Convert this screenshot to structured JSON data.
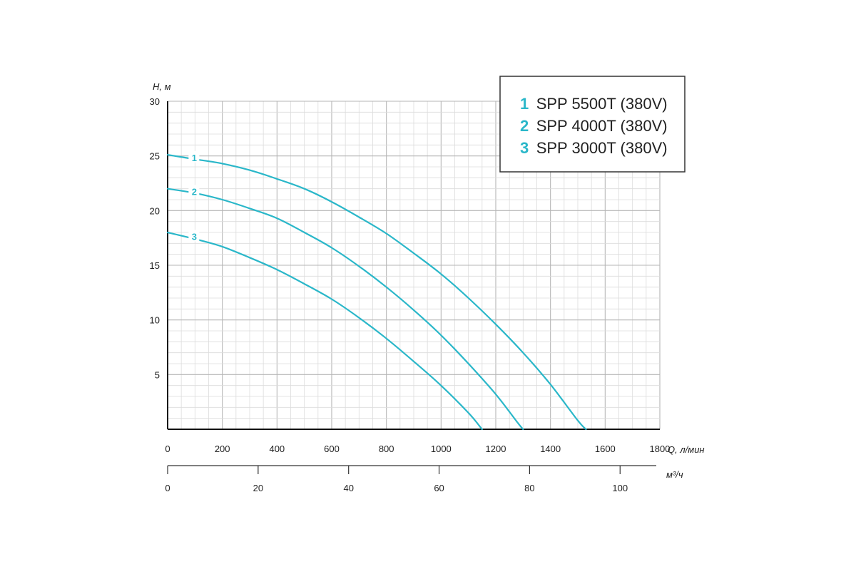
{
  "chart_data": {
    "type": "line",
    "title": "",
    "ylabel": "H, м",
    "xlabel": "Q, л/мин",
    "x2label": "м³/ч",
    "xlim": [
      0,
      1800
    ],
    "ylim": [
      0,
      30
    ],
    "x2lim": [
      0,
      108
    ],
    "xticks": [
      "0",
      "200",
      "400",
      "600",
      "800",
      "1000",
      "1200",
      "1400",
      "1600",
      "1800"
    ],
    "yticks": [
      "5",
      "10",
      "15",
      "20",
      "25",
      "30"
    ],
    "x2ticks": [
      "0",
      "20",
      "40",
      "60",
      "80",
      "100"
    ],
    "grid": true,
    "legend_position": "top-right",
    "series": [
      {
        "num": "1",
        "name": "SPP 5500T (380V)",
        "color": "#2ab7c9",
        "points": [
          [
            0,
            25.1
          ],
          [
            100,
            24.7
          ],
          [
            200,
            24.3
          ],
          [
            300,
            23.7
          ],
          [
            400,
            22.9
          ],
          [
            500,
            22.0
          ],
          [
            600,
            20.8
          ],
          [
            700,
            19.4
          ],
          [
            800,
            17.9
          ],
          [
            900,
            16.1
          ],
          [
            1000,
            14.2
          ],
          [
            1100,
            12.0
          ],
          [
            1200,
            9.6
          ],
          [
            1300,
            7.0
          ],
          [
            1400,
            4.1
          ],
          [
            1500,
            0.8
          ],
          [
            1530,
            0
          ]
        ]
      },
      {
        "num": "2",
        "name": "SPP 4000T (380V)",
        "color": "#2ab7c9",
        "points": [
          [
            0,
            22.0
          ],
          [
            100,
            21.6
          ],
          [
            200,
            21.0
          ],
          [
            300,
            20.2
          ],
          [
            400,
            19.3
          ],
          [
            500,
            18.0
          ],
          [
            600,
            16.6
          ],
          [
            700,
            14.9
          ],
          [
            800,
            13.0
          ],
          [
            900,
            10.9
          ],
          [
            1000,
            8.6
          ],
          [
            1100,
            6.0
          ],
          [
            1200,
            3.2
          ],
          [
            1280,
            0.6
          ],
          [
            1300,
            0
          ]
        ]
      },
      {
        "num": "3",
        "name": "SPP 3000T (380V)",
        "color": "#2ab7c9",
        "points": [
          [
            0,
            18.0
          ],
          [
            100,
            17.4
          ],
          [
            200,
            16.7
          ],
          [
            300,
            15.7
          ],
          [
            400,
            14.6
          ],
          [
            500,
            13.3
          ],
          [
            600,
            11.9
          ],
          [
            700,
            10.2
          ],
          [
            800,
            8.3
          ],
          [
            900,
            6.2
          ],
          [
            1000,
            4.0
          ],
          [
            1100,
            1.5
          ],
          [
            1150,
            0
          ]
        ]
      }
    ]
  },
  "legend": {
    "items": [
      {
        "num": "1",
        "label": "SPP 5500T (380V)"
      },
      {
        "num": "2",
        "label": "SPP 4000T (380V)"
      },
      {
        "num": "3",
        "label": "SPP 3000T (380V)"
      }
    ]
  }
}
